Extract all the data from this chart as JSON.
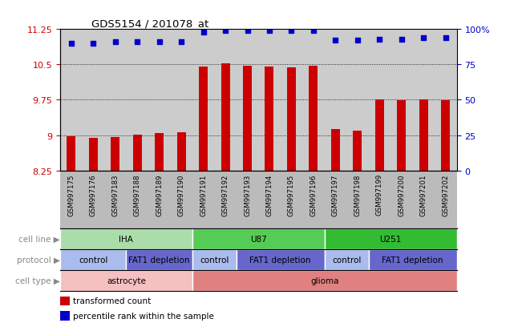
{
  "title": "GDS5154 / 201078_at",
  "samples": [
    "GSM997175",
    "GSM997176",
    "GSM997183",
    "GSM997188",
    "GSM997189",
    "GSM997190",
    "GSM997191",
    "GSM997192",
    "GSM997193",
    "GSM997194",
    "GSM997195",
    "GSM997196",
    "GSM997197",
    "GSM997198",
    "GSM997199",
    "GSM997200",
    "GSM997201",
    "GSM997202"
  ],
  "transformed_count": [
    8.97,
    8.94,
    8.96,
    9.01,
    9.05,
    9.06,
    10.46,
    10.52,
    10.47,
    10.45,
    10.44,
    10.47,
    9.13,
    9.1,
    9.76,
    9.74,
    9.76,
    9.74
  ],
  "percentile_rank": [
    90,
    90,
    91,
    91,
    91,
    91,
    98,
    99,
    99,
    99,
    99,
    99,
    92,
    92,
    93,
    93,
    94,
    94
  ],
  "ylim_left": [
    8.25,
    11.25
  ],
  "ylim_right": [
    0,
    100
  ],
  "yticks_left": [
    8.25,
    9.0,
    9.75,
    10.5,
    11.25
  ],
  "yticks_right": [
    0,
    25,
    50,
    75,
    100
  ],
  "ytick_labels_left": [
    "8.25",
    "9",
    "9.75",
    "10.5",
    "11.25"
  ],
  "ytick_labels_right": [
    "0",
    "25",
    "50",
    "75",
    "100%"
  ],
  "bar_color": "#cc0000",
  "dot_color": "#0000cc",
  "chart_bg": "#cccccc",
  "xtick_bg": "#bbbbbb",
  "cell_line_colors": {
    "IHA": "#aaddaa",
    "U87": "#55cc55",
    "U251": "#33bb33"
  },
  "protocol_colors": {
    "control": "#aabbee",
    "FAT1 depletion": "#6666cc"
  },
  "cell_type_colors": {
    "astrocyte": "#f5c0c0",
    "glioma": "#e08080"
  },
  "row_label_color": "#888888",
  "cell_line_spans": [
    {
      "label": "IHA",
      "start": 0,
      "end": 6
    },
    {
      "label": "U87",
      "start": 6,
      "end": 12
    },
    {
      "label": "U251",
      "start": 12,
      "end": 18
    }
  ],
  "protocol_spans": [
    {
      "label": "control",
      "start": 0,
      "end": 3
    },
    {
      "label": "FAT1 depletion",
      "start": 3,
      "end": 6
    },
    {
      "label": "control",
      "start": 6,
      "end": 8
    },
    {
      "label": "FAT1 depletion",
      "start": 8,
      "end": 12
    },
    {
      "label": "control",
      "start": 12,
      "end": 14
    },
    {
      "label": "FAT1 depletion",
      "start": 14,
      "end": 18
    }
  ],
  "cell_type_spans": [
    {
      "label": "astrocyte",
      "start": 0,
      "end": 6
    },
    {
      "label": "glioma",
      "start": 6,
      "end": 18
    }
  ],
  "legend_items": [
    {
      "label": "transformed count",
      "color": "#cc0000"
    },
    {
      "label": "percentile rank within the sample",
      "color": "#0000cc"
    }
  ],
  "n_samples": 18,
  "bar_width": 0.4
}
